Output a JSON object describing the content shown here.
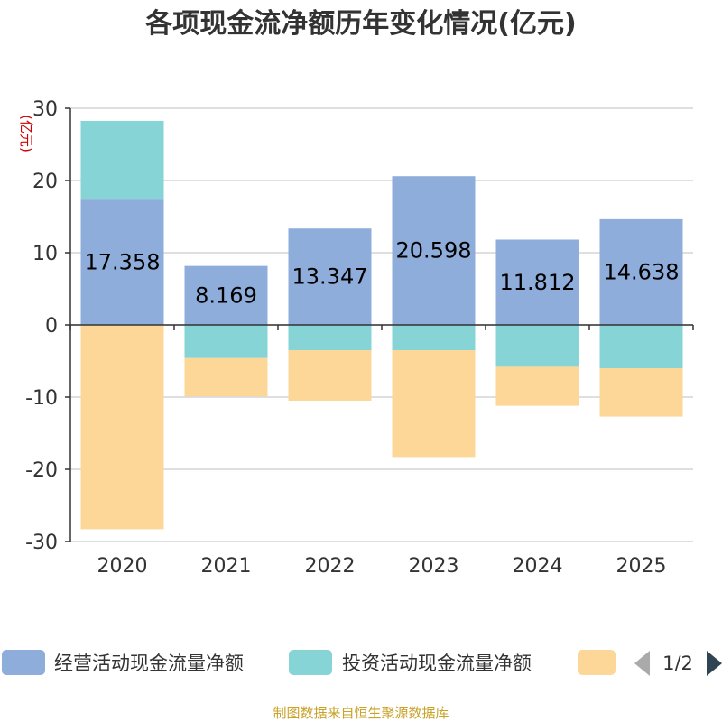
{
  "chart_data": {
    "type": "bar",
    "stacked": true,
    "title": "各项现金流净额历年变化情况(亿元)",
    "unit_label": "(亿元)",
    "categories": [
      "2020",
      "2021",
      "2022",
      "2023",
      "2024",
      "2025"
    ],
    "ylim": [
      -30,
      30
    ],
    "yticks": [
      30,
      20,
      10,
      0,
      -10,
      -20,
      -30
    ],
    "grid": true,
    "series": [
      {
        "name": "经营活动现金流量净额",
        "color": "#8eaddb",
        "values": [
          17.358,
          8.169,
          13.347,
          20.598,
          11.812,
          14.638
        ],
        "labels": [
          "17.358",
          "8.169",
          "13.347",
          "20.598",
          "11.812",
          "14.638"
        ]
      },
      {
        "name": "投资活动现金流量净额",
        "color": "#86d4d6",
        "values": [
          10.9,
          -4.6,
          -3.5,
          -3.5,
          -5.8,
          -6.0
        ]
      },
      {
        "name": "",
        "color": "#fdd797",
        "values": [
          -28.3,
          -5.3,
          -7.0,
          -14.8,
          -5.4,
          -6.7
        ]
      }
    ],
    "legend": {
      "position": "bottom",
      "page": "1/2"
    },
    "source": "制图数据来自恒生聚源数据库"
  }
}
